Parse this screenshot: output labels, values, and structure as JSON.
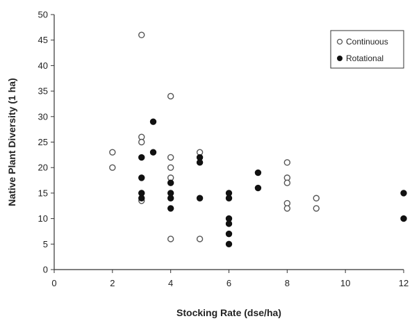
{
  "chart_data": {
    "type": "scatter",
    "title": "",
    "xlabel": "Stocking Rate (dse/ha)",
    "ylabel": "Native Plant Diversity (1 ha)",
    "xlim": [
      0,
      12
    ],
    "ylim": [
      0,
      50
    ],
    "xticks": [
      0,
      2,
      4,
      6,
      8,
      10,
      12
    ],
    "yticks": [
      0,
      5,
      10,
      15,
      20,
      25,
      30,
      35,
      40,
      45,
      50
    ],
    "grid": false,
    "legend_position": "top-right",
    "series": [
      {
        "name": "Continuous",
        "marker": "open-circle",
        "color": "#555555",
        "points": [
          [
            2,
            23
          ],
          [
            2,
            20
          ],
          [
            3,
            46
          ],
          [
            3,
            26
          ],
          [
            3,
            25
          ],
          [
            3,
            15
          ],
          [
            3,
            13.5
          ],
          [
            4,
            34
          ],
          [
            4,
            22
          ],
          [
            4,
            20
          ],
          [
            4,
            18
          ],
          [
            4,
            6
          ],
          [
            5,
            23
          ],
          [
            5,
            6
          ],
          [
            8,
            21
          ],
          [
            8,
            18
          ],
          [
            8,
            17
          ],
          [
            8,
            13
          ],
          [
            8,
            12
          ],
          [
            9,
            14
          ],
          [
            9,
            12
          ]
        ]
      },
      {
        "name": "Rotational",
        "marker": "filled-circle",
        "color": "#111111",
        "points": [
          [
            3,
            22
          ],
          [
            3,
            18
          ],
          [
            3,
            15
          ],
          [
            3,
            14
          ],
          [
            3.4,
            29
          ],
          [
            3.4,
            23
          ],
          [
            4,
            17
          ],
          [
            4,
            15
          ],
          [
            4,
            14
          ],
          [
            4,
            12
          ],
          [
            5,
            22
          ],
          [
            5,
            21
          ],
          [
            5,
            14
          ],
          [
            6,
            15
          ],
          [
            6,
            14
          ],
          [
            6,
            10
          ],
          [
            6,
            9
          ],
          [
            6,
            7
          ],
          [
            6,
            5
          ],
          [
            7,
            19
          ],
          [
            7,
            16
          ],
          [
            12,
            15
          ],
          [
            12,
            10
          ]
        ]
      }
    ]
  }
}
